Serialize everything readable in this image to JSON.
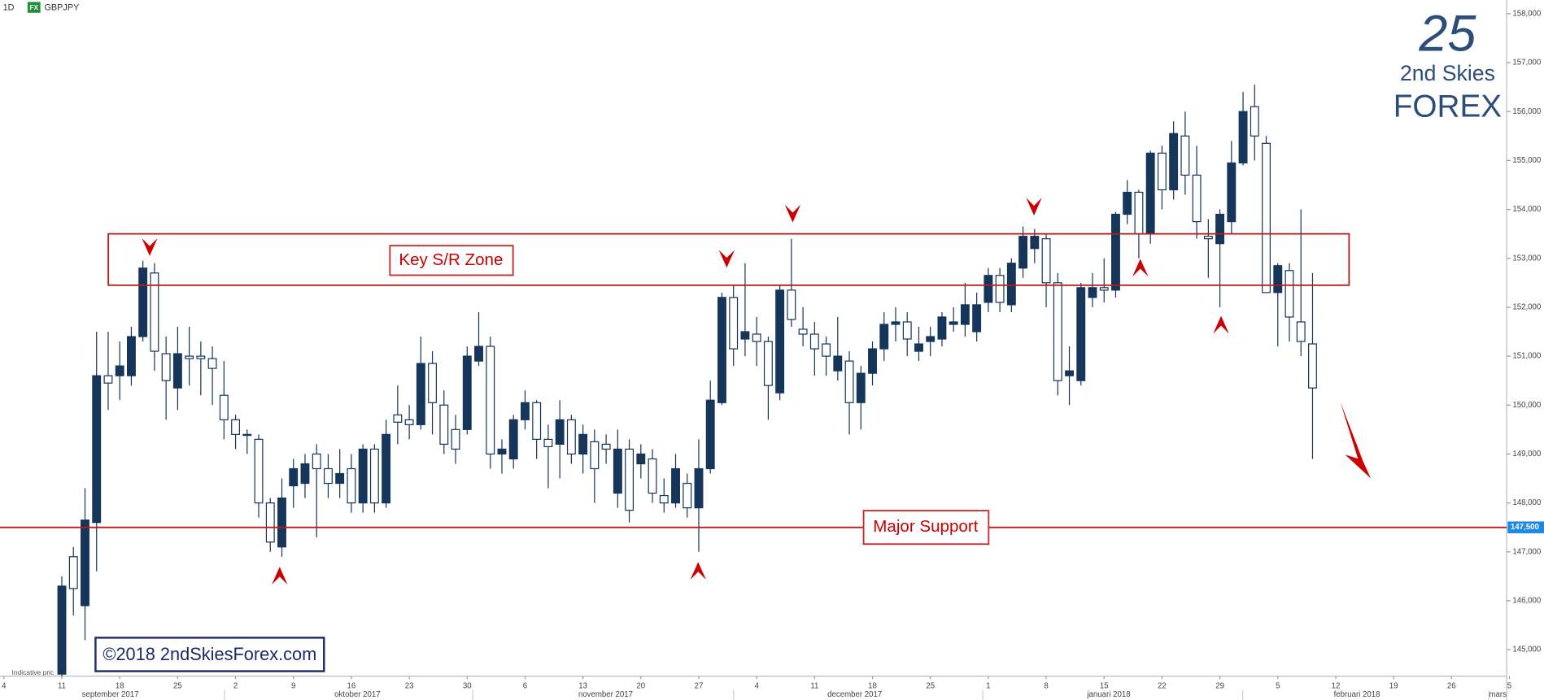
{
  "header": {
    "interval": "1D",
    "badge": "FX",
    "symbol": "GBPJPY"
  },
  "logo": {
    "line1": "2nd Skies",
    "line2": "FOREX"
  },
  "copyright": "©2018 2ndSkiesForex.com",
  "footnote": "Indicative pric",
  "chart_data": {
    "type": "candlestick",
    "up_color": "#16355a",
    "down_color": "#ffffff",
    "x": [
      5,
      6,
      7,
      8,
      9,
      10,
      11,
      12,
      13,
      14,
      15,
      16,
      17,
      18,
      19,
      20,
      21,
      22,
      23,
      24,
      25,
      26,
      27,
      28,
      29,
      30,
      31,
      32,
      33,
      34,
      35,
      36,
      37,
      38,
      39,
      40,
      41,
      42,
      43,
      44,
      45,
      46,
      47,
      48,
      49,
      50,
      51,
      52,
      53,
      54,
      55,
      56,
      57,
      58,
      59,
      60,
      61,
      62,
      63,
      64,
      65,
      66,
      67,
      68,
      69,
      70,
      71,
      72,
      73,
      74,
      75,
      76,
      77,
      78,
      79,
      80,
      81,
      82,
      83,
      84,
      85,
      86,
      87,
      88,
      89,
      90,
      91,
      92,
      93,
      94,
      95,
      96,
      97,
      98,
      99,
      100,
      101,
      102,
      103,
      104,
      105,
      106,
      107,
      108,
      109,
      110,
      111,
      112,
      113
    ],
    "open": [
      144.5,
      146.9,
      145.9,
      147.6,
      150.6,
      150.6,
      150.6,
      151.4,
      152.7,
      151.05,
      150.35,
      151.0,
      151.0,
      150.95,
      150.2,
      149.7,
      149.4,
      149.3,
      148.0,
      147.1,
      148.35,
      148.4,
      149.0,
      148.7,
      148.4,
      148.7,
      148.0,
      149.1,
      148.0,
      149.8,
      149.7,
      149.6,
      150.85,
      150.0,
      149.5,
      149.5,
      150.9,
      151.2,
      149.0,
      148.9,
      149.7,
      150.05,
      149.3,
      149.2,
      149.7,
      149.0,
      149.25,
      149.2,
      148.2,
      149.1,
      148.8,
      148.9,
      148.15,
      148.0,
      148.4,
      147.9,
      148.7,
      150.05,
      152.2,
      151.35,
      151.45,
      151.3,
      150.25,
      152.35,
      151.55,
      151.45,
      151.25,
      150.7,
      150.9,
      150.05,
      150.65,
      151.15,
      151.65,
      151.7,
      151.1,
      151.3,
      151.35,
      151.65,
      151.65,
      151.5,
      152.1,
      152.65,
      152.05,
      152.8,
      153.2,
      153.4,
      152.5,
      150.6,
      150.5,
      152.2,
      152.4,
      152.35,
      153.9,
      154.35,
      153.5,
      155.15,
      154.4,
      155.5,
      154.7,
      153.45,
      153.3,
      153.75,
      154.95,
      156.1,
      155.35,
      152.3,
      152.75,
      151.7,
      151.25
    ],
    "high": [
      146.5,
      147.1,
      148.3,
      151.5,
      151.5,
      151.3,
      151.6,
      152.95,
      152.9,
      151.4,
      151.6,
      151.6,
      151.3,
      151.2,
      150.9,
      149.8,
      149.5,
      149.4,
      148.1,
      148.5,
      148.9,
      149.0,
      149.2,
      149.0,
      149.1,
      149.0,
      149.2,
      149.2,
      149.7,
      150.4,
      150.0,
      151.4,
      151.1,
      150.3,
      149.8,
      151.2,
      151.9,
      151.4,
      149.3,
      149.8,
      150.3,
      150.1,
      149.6,
      150.1,
      149.8,
      149.6,
      149.5,
      149.4,
      149.5,
      149.3,
      149.2,
      149.1,
      148.5,
      149.0,
      148.6,
      149.3,
      150.5,
      152.3,
      152.45,
      152.9,
      151.8,
      151.4,
      152.45,
      153.4,
      152.0,
      151.7,
      151.4,
      151.8,
      151.1,
      150.8,
      151.3,
      151.9,
      152.0,
      151.9,
      151.6,
      151.6,
      151.9,
      152.0,
      152.5,
      152.3,
      152.8,
      152.8,
      153.0,
      153.65,
      153.6,
      153.5,
      152.7,
      151.2,
      152.5,
      152.7,
      153.0,
      153.95,
      154.6,
      154.4,
      155.2,
      155.3,
      155.8,
      156.0,
      155.3,
      153.8,
      154.0,
      155.4,
      156.4,
      156.55,
      155.5,
      152.9,
      152.9,
      154.0,
      152.7
    ],
    "low": [
      144.0,
      145.7,
      145.2,
      146.6,
      149.9,
      150.1,
      150.4,
      151.3,
      150.7,
      149.7,
      149.9,
      150.4,
      150.2,
      150.0,
      149.3,
      149.1,
      149.0,
      147.7,
      147.0,
      146.9,
      147.9,
      148.1,
      147.3,
      148.1,
      148.1,
      147.8,
      147.8,
      147.8,
      147.9,
      149.2,
      149.3,
      149.5,
      149.4,
      149.0,
      148.8,
      149.4,
      150.8,
      148.7,
      148.6,
      148.7,
      149.5,
      148.9,
      148.3,
      148.5,
      148.8,
      148.6,
      148.0,
      148.8,
      147.9,
      147.6,
      148.5,
      148.0,
      147.8,
      147.9,
      147.7,
      147.0,
      148.6,
      150.0,
      150.8,
      151.0,
      150.8,
      149.7,
      150.1,
      151.6,
      151.2,
      150.6,
      150.6,
      150.5,
      149.4,
      149.5,
      150.4,
      150.9,
      151.3,
      151.0,
      150.9,
      151.0,
      151.2,
      151.5,
      151.4,
      151.3,
      151.9,
      151.9,
      151.9,
      152.6,
      152.9,
      152.0,
      150.2,
      150.0,
      150.4,
      152.0,
      152.1,
      152.2,
      153.7,
      153.0,
      153.3,
      154.0,
      154.2,
      154.3,
      153.4,
      152.6,
      152.0,
      153.5,
      154.9,
      155.0,
      152.3,
      151.2,
      151.3,
      151.0,
      148.9
    ],
    "close": [
      146.3,
      146.25,
      147.65,
      150.6,
      150.45,
      150.8,
      151.4,
      152.8,
      151.1,
      150.5,
      151.05,
      150.95,
      150.95,
      150.75,
      149.7,
      149.4,
      149.38,
      148.0,
      147.2,
      148.1,
      148.7,
      148.8,
      148.7,
      148.4,
      148.6,
      148.0,
      149.1,
      148.0,
      149.4,
      149.65,
      149.6,
      150.85,
      150.05,
      149.2,
      149.1,
      151.0,
      151.2,
      149.0,
      149.1,
      149.7,
      150.05,
      149.3,
      149.15,
      149.7,
      149.0,
      149.4,
      148.7,
      149.1,
      149.1,
      147.85,
      149.0,
      148.2,
      148.0,
      148.7,
      147.9,
      148.7,
      150.1,
      152.2,
      151.15,
      151.5,
      151.3,
      150.4,
      152.35,
      151.75,
      151.45,
      151.15,
      151.0,
      151.0,
      150.05,
      150.65,
      151.15,
      151.65,
      151.7,
      151.35,
      151.25,
      151.4,
      151.8,
      151.7,
      152.05,
      152.05,
      152.65,
      152.1,
      152.9,
      153.45,
      153.45,
      152.5,
      150.5,
      150.7,
      152.4,
      152.4,
      152.35,
      153.9,
      154.35,
      153.5,
      155.15,
      154.4,
      155.55,
      154.7,
      153.75,
      153.4,
      153.9,
      154.95,
      156.0,
      155.5,
      152.3,
      152.85,
      151.8,
      151.3,
      150.35
    ],
    "xlim": [
      -0.34,
      129.76
    ],
    "xticks": [
      {
        "value": 0,
        "label": "4"
      },
      {
        "value": 5,
        "label": "11"
      },
      {
        "value": 10,
        "label": "18"
      },
      {
        "value": 15,
        "label": "25"
      },
      {
        "value": 20,
        "label": "2"
      },
      {
        "value": 25,
        "label": "9"
      },
      {
        "value": 30,
        "label": "16"
      },
      {
        "value": 35,
        "label": "23"
      },
      {
        "value": 40,
        "label": "30"
      },
      {
        "value": 45,
        "label": "6"
      },
      {
        "value": 50,
        "label": "13"
      },
      {
        "value": 55,
        "label": "20"
      },
      {
        "value": 60,
        "label": "27"
      },
      {
        "value": 65,
        "label": "4"
      },
      {
        "value": 70,
        "label": "11"
      },
      {
        "value": 75,
        "label": "18"
      },
      {
        "value": 80,
        "label": "25"
      },
      {
        "value": 85,
        "label": "1"
      },
      {
        "value": 90,
        "label": "8"
      },
      {
        "value": 95,
        "label": "15"
      },
      {
        "value": 100,
        "label": "22"
      },
      {
        "value": 105,
        "label": "29"
      },
      {
        "value": 110,
        "label": "5"
      },
      {
        "value": 115,
        "label": "12"
      },
      {
        "value": 120,
        "label": "19"
      },
      {
        "value": 125,
        "label": "26"
      },
      {
        "value": 130,
        "label": "5"
      }
    ],
    "months": [
      "september 2017",
      "oktober 2017",
      "november 2017",
      "december 2017",
      "januari 2018",
      "februari 2018",
      "mars"
    ],
    "ylim": [
      144.46,
      158.28
    ],
    "yticks": [
      {
        "value": 158,
        "label": "158,000"
      },
      {
        "value": 157,
        "label": "157,000"
      },
      {
        "value": 156,
        "label": "156,000"
      },
      {
        "value": 155,
        "label": "155,000"
      },
      {
        "value": 154,
        "label": "154,000"
      },
      {
        "value": 153,
        "label": "153,000"
      },
      {
        "value": 152,
        "label": "152,000"
      },
      {
        "value": 151,
        "label": "151,000"
      },
      {
        "value": 150,
        "label": "150,000"
      },
      {
        "value": 149,
        "label": "149,000"
      },
      {
        "value": 148,
        "label": "148,000"
      },
      {
        "value": 147,
        "label": "147,000"
      },
      {
        "value": 146,
        "label": "146,000"
      },
      {
        "value": 145,
        "label": "145,000"
      }
    ],
    "zone": {
      "label": "Key S/R Zone",
      "range": [
        152.45,
        153.5
      ]
    },
    "support": {
      "label": "Major Support",
      "value": 147.5,
      "price_label": "147,500"
    }
  }
}
